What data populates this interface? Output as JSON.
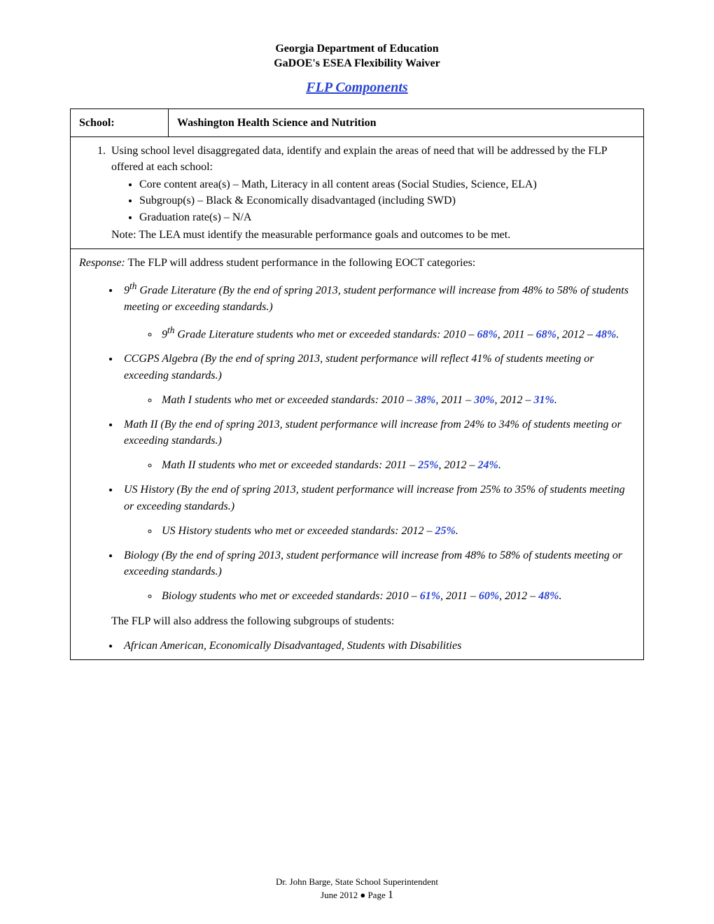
{
  "header": {
    "line1": "Georgia Department of Education",
    "line2": "GaDOE's ESEA Flexibility Waiver"
  },
  "title": "FLP Components",
  "school": {
    "label": "School:",
    "name": "Washington Health Science and Nutrition"
  },
  "question": {
    "text": "Using school level disaggregated data, identify and explain the areas of need that will be addressed by the FLP offered at each school:",
    "bullets": [
      "Core content area(s) – Math, Literacy in all content areas (Social Studies, Science, ELA)",
      "Subgroup(s) – Black & Economically disadvantaged (including SWD)",
      "Graduation rate(s) – N/A"
    ],
    "note": "Note:  The LEA must identify the measurable performance goals and outcomes to be met."
  },
  "response": {
    "label": "Response:",
    "intro": "  The FLP will address student performance in the following EOCT categories:",
    "goals": [
      {
        "text_pre": "9",
        "sup": "th",
        "text_post": " Grade Literature (By the end of spring 2013, student performance will increase from 48% to 58% of students meeting or exceeding standards.)",
        "detail_pre": "9",
        "detail_sup": "th",
        "detail_post": " Grade Literature students who met or exceeded standards: 2010 – ",
        "data": [
          {
            "pct": "68%",
            "suffix": ", 2011 – "
          },
          {
            "pct": "68%",
            "suffix": ", 2012 – "
          },
          {
            "pct": "48%",
            "suffix": "."
          }
        ]
      },
      {
        "text_pre": "CCGPS Algebra (By the end of spring 2013, student performance will reflect 41% of students meeting or exceeding standards.)",
        "detail_pre": "Math I students who met or exceeded standards: 2010 – ",
        "data": [
          {
            "pct": "38%",
            "suffix": ", 2011 – "
          },
          {
            "pct": "30%",
            "suffix": ", 2012 – "
          },
          {
            "pct": "31%",
            "suffix": "."
          }
        ]
      },
      {
        "text_pre": "Math II (By the end of spring 2013, student performance will increase from 24% to 34% of students meeting or exceeding standards.)",
        "detail_pre": "Math II students who met or exceeded standards: 2011 – ",
        "data": [
          {
            "pct": "25%",
            "suffix": ", 2012 – "
          },
          {
            "pct": "24%",
            "suffix": "."
          }
        ]
      },
      {
        "text_pre": "US History (By the end of spring 2013, student performance will increase from 25% to 35% of students meeting or exceeding standards.)",
        "detail_pre": "US History students who met or exceeded standards: 2012 – ",
        "data": [
          {
            "pct": "25%",
            "suffix": "."
          }
        ]
      },
      {
        "text_pre": "Biology (By the end of spring 2013, student performance will increase from 48% to 58% of students meeting or exceeding standards.)",
        "detail_pre": "Biology students who met or exceeded standards: 2010 – ",
        "data": [
          {
            "pct": "61%",
            "suffix": ", 2011 – "
          },
          {
            "pct": "60%",
            "suffix": ", 2012 – "
          },
          {
            "pct": "48%",
            "suffix": "."
          }
        ]
      }
    ],
    "subgroup_intro": "The FLP will also address the following subgroups of students:",
    "subgroup": "African American, Economically Disadvantaged, Students with Disabilities"
  },
  "footer": {
    "line1": "Dr. John Barge, State School Superintendent",
    "line2_prefix": "June 2012 ● Page ",
    "page_no": "1"
  },
  "colors": {
    "link_blue": "#2a43d2",
    "text": "#000000",
    "bg": "#ffffff",
    "border": "#000000"
  }
}
